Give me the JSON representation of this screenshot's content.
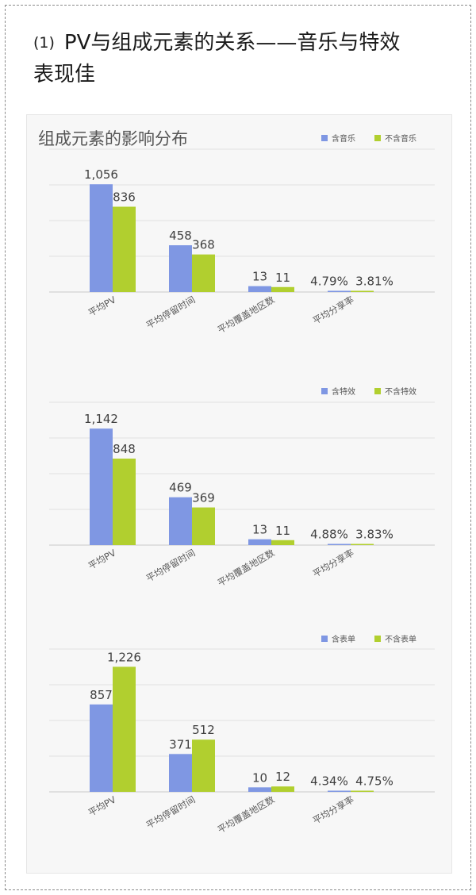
{
  "heading": {
    "number": "(1)",
    "line1": "PV与组成元素的关系——音乐与特效",
    "line2": "表现佳"
  },
  "colors": {
    "with": "#7f97e3",
    "without": "#b1cf2f"
  },
  "chart_data": [
    {
      "type": "bar",
      "title": "组成元素的影响分布",
      "categories": [
        "平均PV",
        "平均停留时间",
        "平均覆盖地区数",
        "平均分享率"
      ],
      "series": [
        {
          "name": "含音乐",
          "values": [
            1056,
            458,
            13,
            4.79
          ],
          "labels": [
            "1,056",
            "458",
            "13",
            "4.79%"
          ]
        },
        {
          "name": "不含音乐",
          "values": [
            836,
            368,
            11,
            3.81
          ],
          "labels": [
            "836",
            "368",
            "11",
            "3.81%"
          ]
        }
      ],
      "ylim": [
        0,
        1400
      ],
      "grid": true,
      "legend": "top-right"
    },
    {
      "type": "bar",
      "title": "",
      "categories": [
        "平均PV",
        "平均停留时间",
        "平均覆盖地区数",
        "平均分享率"
      ],
      "series": [
        {
          "name": "含特效",
          "values": [
            1142,
            469,
            13,
            4.88
          ],
          "labels": [
            "1,142",
            "469",
            "13",
            "4.88%"
          ]
        },
        {
          "name": "不含特效",
          "values": [
            848,
            369,
            11,
            3.83
          ],
          "labels": [
            "848",
            "369",
            "11",
            "3.83%"
          ]
        }
      ],
      "ylim": [
        0,
        1400
      ],
      "grid": true,
      "legend": "top-right"
    },
    {
      "type": "bar",
      "title": "",
      "categories": [
        "平均PV",
        "平均停留时间",
        "平均覆盖地区数",
        "平均分享率"
      ],
      "series": [
        {
          "name": "含表单",
          "values": [
            857,
            371,
            10,
            4.34
          ],
          "labels": [
            "857",
            "371",
            "10",
            "4.34%"
          ]
        },
        {
          "name": "不含表单",
          "values": [
            1226,
            512,
            12,
            4.75
          ],
          "labels": [
            "1,226",
            "512",
            "12",
            "4.75%"
          ]
        }
      ],
      "ylim": [
        0,
        1400
      ],
      "grid": true,
      "legend": "top-right"
    }
  ]
}
